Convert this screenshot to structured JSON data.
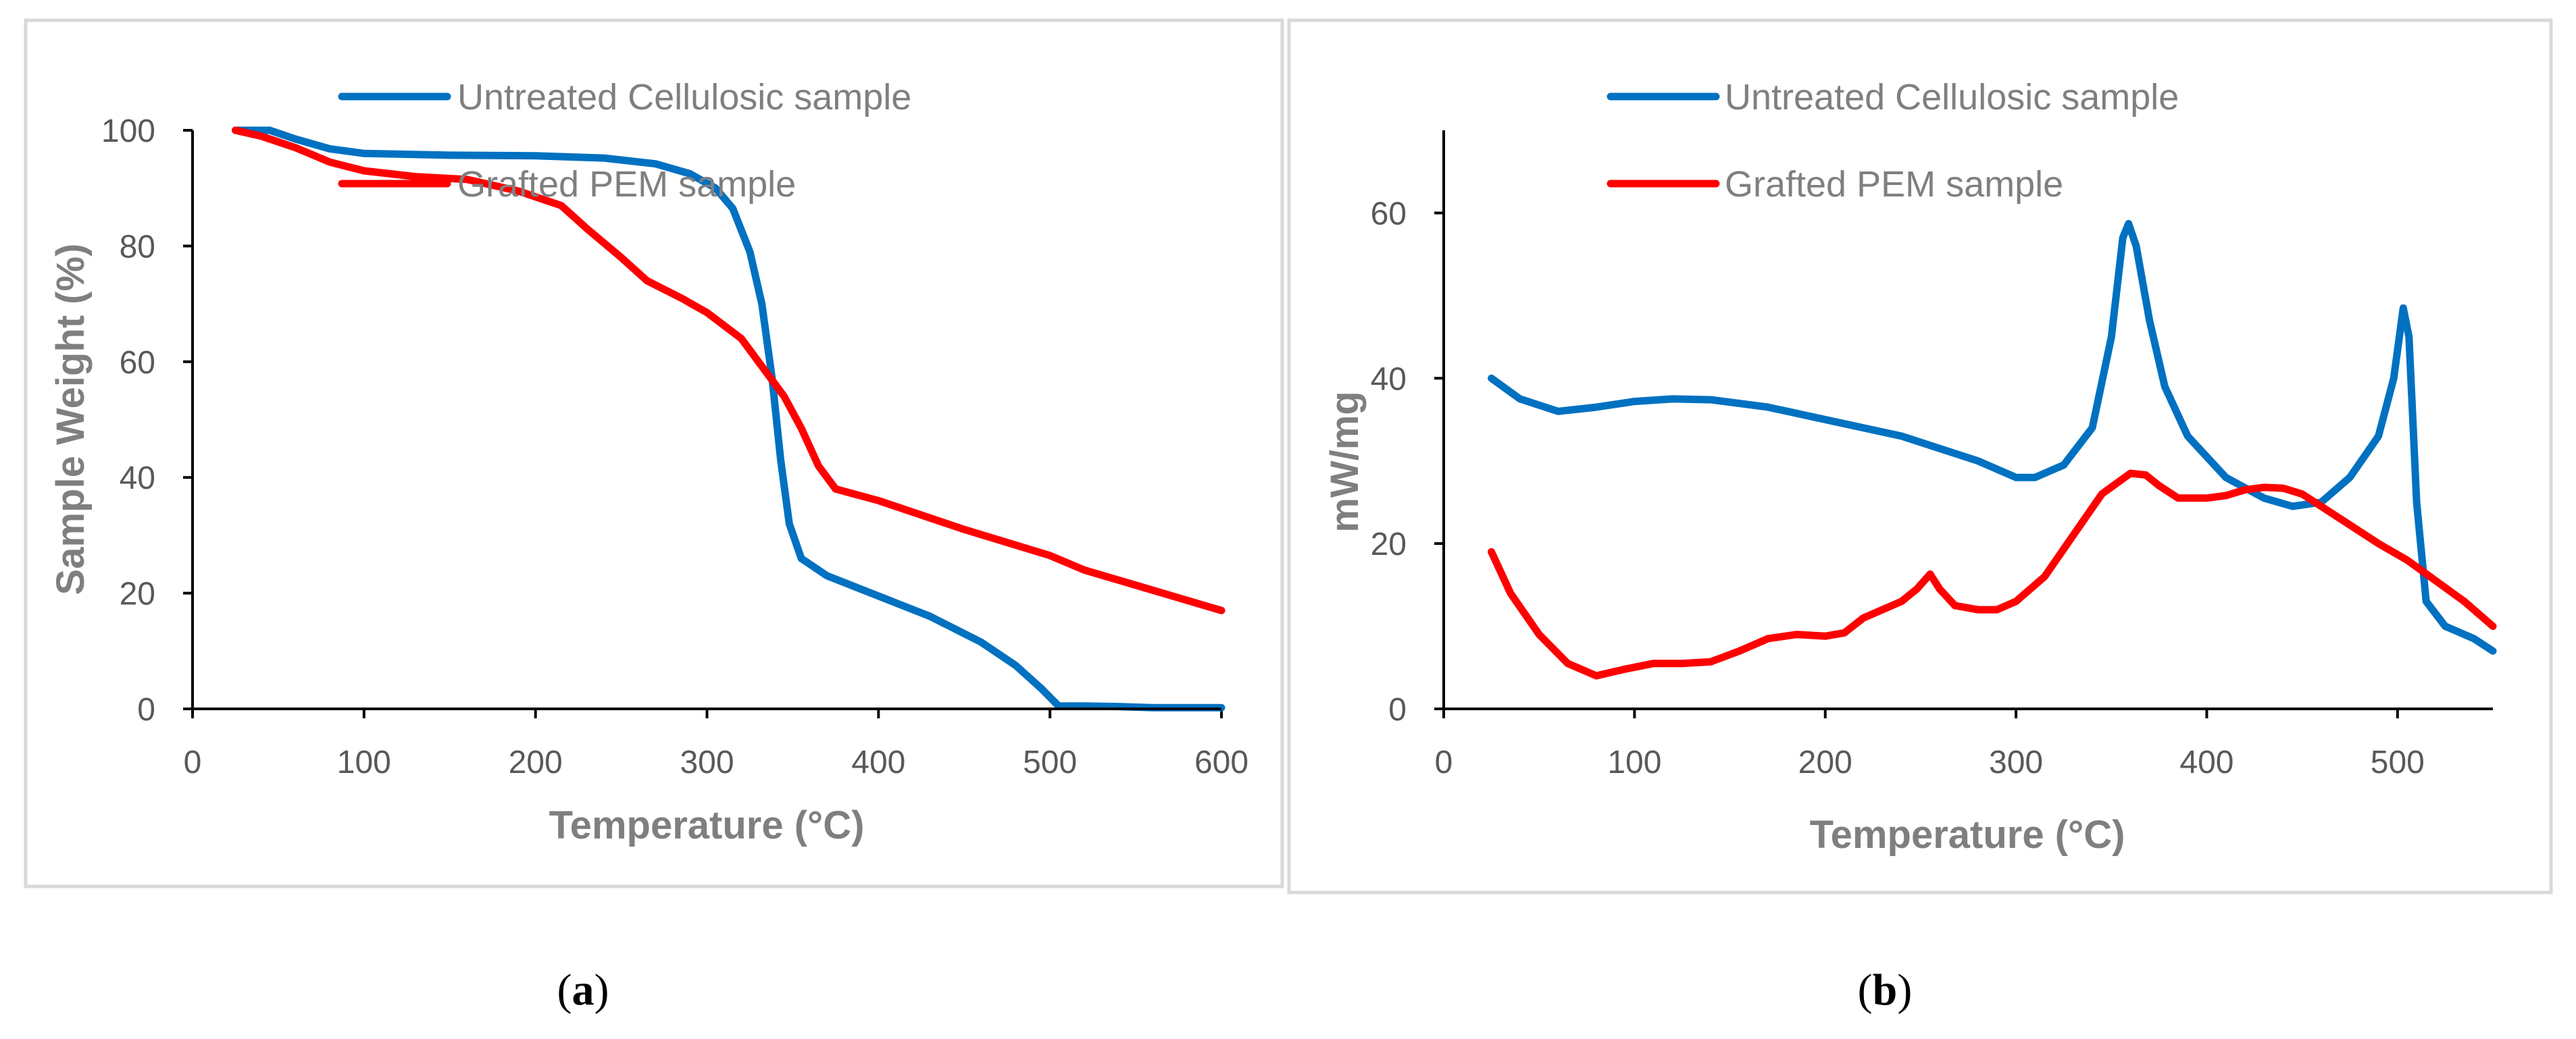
{
  "chart_data": [
    {
      "type": "line",
      "panel_label": "a",
      "caption": {
        "open": "(",
        "letter": "a",
        "close": ")"
      },
      "xlabel": "Temperature (°C)",
      "ylabel": "Sample Weight (%)",
      "xlim": [
        0,
        600
      ],
      "ylim": [
        0,
        100
      ],
      "xticks": [
        0,
        100,
        200,
        300,
        400,
        500,
        600
      ],
      "yticks": [
        0,
        20,
        40,
        60,
        80,
        100
      ],
      "legend_position": "top-center",
      "series": [
        {
          "name": "Untreated Cellulosic sample",
          "color": "#0070C0",
          "points": [
            [
              25,
              100
            ],
            [
              45,
              100
            ],
            [
              60,
              98.5
            ],
            [
              80,
              96.8
            ],
            [
              100,
              96
            ],
            [
              150,
              95.7
            ],
            [
              200,
              95.6
            ],
            [
              240,
              95.2
            ],
            [
              270,
              94.2
            ],
            [
              290,
              92.5
            ],
            [
              305,
              90
            ],
            [
              315,
              86.5
            ],
            [
              325,
              79
            ],
            [
              332,
              70
            ],
            [
              338,
              57
            ],
            [
              343,
              43
            ],
            [
              348,
              32
            ],
            [
              355,
              26
            ],
            [
              370,
              23
            ],
            [
              400,
              19.5
            ],
            [
              430,
              16
            ],
            [
              460,
              11.5
            ],
            [
              480,
              7.5
            ],
            [
              495,
              3.5
            ],
            [
              505,
              0.5
            ],
            [
              520,
              0.5
            ],
            [
              540,
              0.4
            ],
            [
              560,
              0.2
            ],
            [
              600,
              0.2
            ]
          ]
        },
        {
          "name": "Grafted PEM sample",
          "color": "#FF0000",
          "points": [
            [
              25,
              100
            ],
            [
              40,
              99
            ],
            [
              60,
              97
            ],
            [
              80,
              94.5
            ],
            [
              100,
              93
            ],
            [
              130,
              92
            ],
            [
              160,
              91.5
            ],
            [
              190,
              89.5
            ],
            [
              215,
              87
            ],
            [
              230,
              83
            ],
            [
              250,
              78
            ],
            [
              265,
              74
            ],
            [
              285,
              71
            ],
            [
              300,
              68.5
            ],
            [
              320,
              64
            ],
            [
              335,
              58
            ],
            [
              345,
              54
            ],
            [
              355,
              48.5
            ],
            [
              365,
              42
            ],
            [
              375,
              38
            ],
            [
              400,
              36
            ],
            [
              450,
              31
            ],
            [
              500,
              26.5
            ],
            [
              520,
              24
            ],
            [
              560,
              20.5
            ],
            [
              600,
              17
            ]
          ]
        }
      ]
    },
    {
      "type": "line",
      "panel_label": "b",
      "caption": {
        "open": "(",
        "letter": "b",
        "close": ")"
      },
      "xlabel": "Temperature (°C)",
      "ylabel": "mW/mg",
      "xlim": [
        0,
        550
      ],
      "ylim": [
        0,
        70
      ],
      "xticks": [
        0,
        100,
        200,
        300,
        400,
        500
      ],
      "yticks": [
        0,
        20,
        40,
        60
      ],
      "legend_position": "top-center",
      "series": [
        {
          "name": "Untreated Cellulosic sample",
          "color": "#0070C0",
          "points": [
            [
              25,
              40
            ],
            [
              40,
              37.5
            ],
            [
              60,
              36
            ],
            [
              80,
              36.5
            ],
            [
              100,
              37.2
            ],
            [
              120,
              37.5
            ],
            [
              140,
              37.4
            ],
            [
              170,
              36.5
            ],
            [
              200,
              35
            ],
            [
              240,
              33
            ],
            [
              280,
              30
            ],
            [
              300,
              28
            ],
            [
              310,
              28
            ],
            [
              325,
              29.5
            ],
            [
              340,
              34
            ],
            [
              350,
              45
            ],
            [
              356,
              57
            ],
            [
              359,
              58.7
            ],
            [
              363,
              56
            ],
            [
              370,
              47
            ],
            [
              378,
              39
            ],
            [
              390,
              33
            ],
            [
              410,
              28
            ],
            [
              430,
              25.5
            ],
            [
              445,
              24.5
            ],
            [
              460,
              25
            ],
            [
              475,
              28
            ],
            [
              490,
              33
            ],
            [
              498,
              40
            ],
            [
              503,
              48.5
            ],
            [
              506,
              45
            ],
            [
              510,
              25
            ],
            [
              515,
              13
            ],
            [
              525,
              10
            ],
            [
              540,
              8.5
            ],
            [
              550,
              7
            ]
          ]
        },
        {
          "name": "Grafted PEM sample",
          "color": "#FF0000",
          "points": [
            [
              25,
              19
            ],
            [
              35,
              14
            ],
            [
              50,
              9
            ],
            [
              65,
              5.5
            ],
            [
              80,
              4
            ],
            [
              95,
              4.8
            ],
            [
              110,
              5.5
            ],
            [
              125,
              5.5
            ],
            [
              140,
              5.7
            ],
            [
              155,
              7
            ],
            [
              170,
              8.5
            ],
            [
              185,
              9
            ],
            [
              200,
              8.8
            ],
            [
              210,
              9.2
            ],
            [
              220,
              11
            ],
            [
              230,
              12
            ],
            [
              240,
              13
            ],
            [
              248,
              14.5
            ],
            [
              255,
              16.3
            ],
            [
              260,
              14.5
            ],
            [
              268,
              12.5
            ],
            [
              280,
              12
            ],
            [
              290,
              12
            ],
            [
              300,
              13
            ],
            [
              315,
              16
            ],
            [
              330,
              21
            ],
            [
              345,
              26
            ],
            [
              360,
              28.5
            ],
            [
              368,
              28.3
            ],
            [
              375,
              27
            ],
            [
              385,
              25.5
            ],
            [
              400,
              25.5
            ],
            [
              410,
              25.8
            ],
            [
              420,
              26.5
            ],
            [
              430,
              26.8
            ],
            [
              440,
              26.7
            ],
            [
              450,
              26
            ],
            [
              470,
              23
            ],
            [
              490,
              20
            ],
            [
              505,
              18
            ],
            [
              520,
              15.5
            ],
            [
              535,
              13
            ],
            [
              550,
              10
            ]
          ]
        }
      ]
    }
  ]
}
